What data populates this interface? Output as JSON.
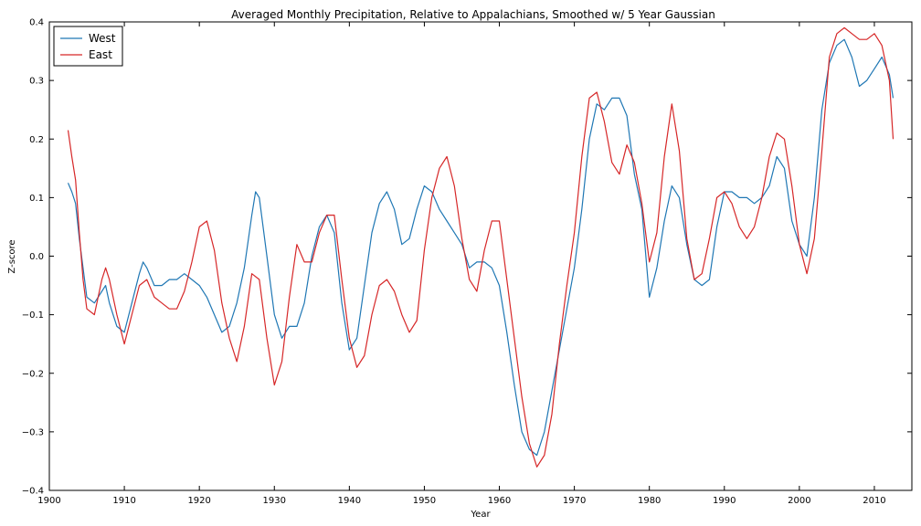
{
  "chart_data": {
    "type": "line",
    "title": "Averaged Monthly Precipitation, Relative to Appalachians, Smoothed w/ 5 Year Gaussian",
    "xlabel": "Year",
    "ylabel": "Z-score",
    "xlim": [
      1900,
      2015
    ],
    "ylim": [
      -0.4,
      0.4
    ],
    "xticks": [
      "1900",
      "1910",
      "1920",
      "1930",
      "1940",
      "1950",
      "1960",
      "1970",
      "1980",
      "1990",
      "2000",
      "2010"
    ],
    "yticks": [
      "−0.4",
      "−0.3",
      "−0.2",
      "−0.1",
      "0.0",
      "0.1",
      "0.2",
      "0.3",
      "0.4"
    ],
    "grid": false,
    "legend_position": "top-left",
    "series": [
      {
        "name": "West",
        "color": "#1f77b4",
        "x": [
          1902.5,
          1903,
          1903.5,
          1904,
          1904.5,
          1905,
          1906,
          1906.5,
          1907,
          1907.5,
          1908,
          1909,
          1910,
          1911,
          1912,
          1912.5,
          1913,
          1914,
          1915,
          1916,
          1917,
          1918,
          1919,
          1920,
          1921,
          1922,
          1923,
          1924,
          1925,
          1926,
          1927,
          1927.5,
          1928,
          1929,
          1930,
          1931,
          1932,
          1933,
          1934,
          1935,
          1936,
          1937,
          1938,
          1939,
          1940,
          1941,
          1942,
          1943,
          1944,
          1945,
          1946,
          1947,
          1948,
          1949,
          1950,
          1951,
          1952,
          1953,
          1954,
          1955,
          1956,
          1957,
          1958,
          1959,
          1960,
          1961,
          1962,
          1963,
          1964,
          1965,
          1966,
          1967,
          1968,
          1969,
          1970,
          1971,
          1972,
          1973,
          1974,
          1975,
          1976,
          1977,
          1978,
          1979,
          1980,
          1981,
          1982,
          1983,
          1984,
          1985,
          1986,
          1987,
          1988,
          1989,
          1990,
          1991,
          1992,
          1993,
          1994,
          1995,
          1996,
          1997,
          1998,
          1999,
          2000,
          2001,
          2002,
          2003,
          2004,
          2005,
          2006,
          2007,
          2008,
          2009,
          2010,
          2011,
          2012,
          2012.5
        ],
        "values": [
          0.125,
          0.11,
          0.09,
          0.03,
          -0.02,
          -0.07,
          -0.08,
          -0.07,
          -0.06,
          -0.05,
          -0.08,
          -0.12,
          -0.13,
          -0.08,
          -0.03,
          -0.01,
          -0.02,
          -0.05,
          -0.05,
          -0.04,
          -0.04,
          -0.03,
          -0.04,
          -0.05,
          -0.07,
          -0.1,
          -0.13,
          -0.12,
          -0.08,
          -0.02,
          0.07,
          0.11,
          0.1,
          0.0,
          -0.1,
          -0.14,
          -0.12,
          -0.12,
          -0.08,
          0.0,
          0.05,
          0.07,
          0.04,
          -0.08,
          -0.16,
          -0.14,
          -0.05,
          0.04,
          0.09,
          0.11,
          0.08,
          0.02,
          0.03,
          0.08,
          0.12,
          0.11,
          0.08,
          0.06,
          0.04,
          0.02,
          -0.02,
          -0.01,
          -0.01,
          -0.02,
          -0.05,
          -0.13,
          -0.22,
          -0.3,
          -0.33,
          -0.34,
          -0.3,
          -0.23,
          -0.16,
          -0.09,
          -0.02,
          0.08,
          0.2,
          0.26,
          0.25,
          0.27,
          0.27,
          0.24,
          0.14,
          0.08,
          -0.07,
          -0.02,
          0.06,
          0.12,
          0.1,
          0.02,
          -0.04,
          -0.05,
          -0.04,
          0.05,
          0.11,
          0.11,
          0.1,
          0.1,
          0.09,
          0.1,
          0.12,
          0.17,
          0.15,
          0.06,
          0.02,
          0.0,
          0.1,
          0.25,
          0.33,
          0.36,
          0.37,
          0.34,
          0.29,
          0.3,
          0.32,
          0.34,
          0.31,
          0.27
        ]
      },
      {
        "name": "East",
        "color": "#d62728",
        "x": [
          1902.5,
          1903,
          1903.5,
          1904,
          1904.5,
          1905,
          1906,
          1906.5,
          1907,
          1907.5,
          1908,
          1909,
          1910,
          1911,
          1912,
          1913,
          1914,
          1915,
          1916,
          1917,
          1918,
          1919,
          1920,
          1921,
          1922,
          1923,
          1924,
          1925,
          1926,
          1927,
          1928,
          1929,
          1930,
          1931,
          1932,
          1933,
          1934,
          1935,
          1936,
          1937,
          1938,
          1939,
          1940,
          1941,
          1942,
          1943,
          1944,
          1945,
          1946,
          1947,
          1948,
          1949,
          1950,
          1951,
          1952,
          1953,
          1954,
          1955,
          1956,
          1957,
          1958,
          1959,
          1960,
          1961,
          1962,
          1963,
          1964,
          1965,
          1966,
          1967,
          1968,
          1969,
          1970,
          1971,
          1972,
          1973,
          1974,
          1975,
          1976,
          1977,
          1978,
          1979,
          1980,
          1981,
          1982,
          1983,
          1984,
          1985,
          1986,
          1987,
          1988,
          1989,
          1990,
          1991,
          1992,
          1993,
          1994,
          1995,
          1996,
          1997,
          1998,
          1999,
          2000,
          2001,
          2002,
          2003,
          2004,
          2005,
          2006,
          2007,
          2008,
          2009,
          2010,
          2011,
          2012,
          2012.5
        ],
        "values": [
          0.215,
          0.17,
          0.13,
          0.04,
          -0.04,
          -0.09,
          -0.1,
          -0.07,
          -0.04,
          -0.02,
          -0.04,
          -0.1,
          -0.15,
          -0.1,
          -0.05,
          -0.04,
          -0.07,
          -0.08,
          -0.09,
          -0.09,
          -0.06,
          -0.01,
          0.05,
          0.06,
          0.01,
          -0.08,
          -0.14,
          -0.18,
          -0.12,
          -0.03,
          -0.04,
          -0.14,
          -0.22,
          -0.18,
          -0.07,
          0.02,
          -0.01,
          -0.01,
          0.04,
          0.07,
          0.07,
          -0.04,
          -0.14,
          -0.19,
          -0.17,
          -0.1,
          -0.05,
          -0.04,
          -0.06,
          -0.1,
          -0.13,
          -0.11,
          0.01,
          0.1,
          0.15,
          0.17,
          0.12,
          0.03,
          -0.04,
          -0.06,
          0.01,
          0.06,
          0.06,
          -0.04,
          -0.14,
          -0.24,
          -0.32,
          -0.36,
          -0.34,
          -0.27,
          -0.15,
          -0.05,
          0.04,
          0.17,
          0.27,
          0.28,
          0.23,
          0.16,
          0.14,
          0.19,
          0.16,
          0.09,
          -0.01,
          0.04,
          0.17,
          0.26,
          0.18,
          0.03,
          -0.04,
          -0.03,
          0.03,
          0.1,
          0.11,
          0.09,
          0.05,
          0.03,
          0.05,
          0.1,
          0.17,
          0.21,
          0.2,
          0.12,
          0.02,
          -0.03,
          0.03,
          0.18,
          0.34,
          0.38,
          0.39,
          0.38,
          0.37,
          0.37,
          0.38,
          0.36,
          0.3,
          0.2
        ]
      }
    ]
  }
}
